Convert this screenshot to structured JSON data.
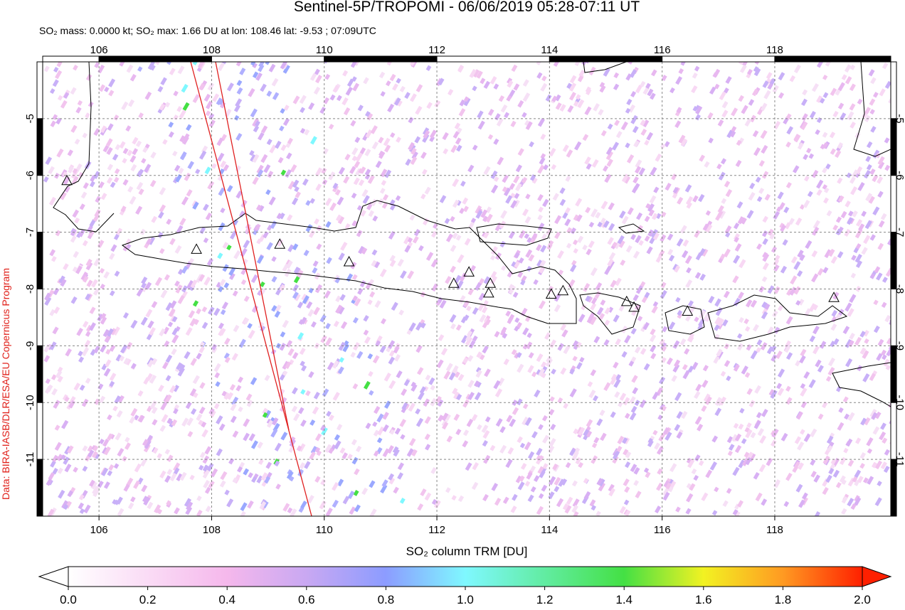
{
  "title": "Sentinel-5P/TROPOMI - 06/06/2019 05:28-07:11 UT",
  "subtitle": "SO₂ mass: 0.0000 kt; SO₂ max: 1.66 DU at lon: 108.46 lat: -9.53 ; 07:09UTC",
  "credit": "Data: BIRA-IASB/DLR/ESA/EU Copernicus Program",
  "map": {
    "xlim": [
      105,
      120.06
    ],
    "ylim": [
      -12,
      -4
    ],
    "xticks": [
      106,
      108,
      110,
      112,
      114,
      116,
      118
    ],
    "yticks": [
      -5,
      -6,
      -7,
      -8,
      -9,
      -10,
      -11
    ],
    "volcanoes": [
      [
        105.43,
        -6.1
      ],
      [
        107.73,
        -7.31
      ],
      [
        109.21,
        -7.22
      ],
      [
        110.44,
        -7.53
      ],
      [
        112.3,
        -7.91
      ],
      [
        112.57,
        -7.71
      ],
      [
        112.95,
        -7.91
      ],
      [
        112.92,
        -8.08
      ],
      [
        114.03,
        -8.1
      ],
      [
        114.24,
        -8.04
      ],
      [
        115.37,
        -8.23
      ],
      [
        115.5,
        -8.33
      ],
      [
        116.45,
        -8.4
      ],
      [
        119.05,
        -8.16
      ]
    ]
  },
  "colorbar": {
    "label": "SO₂ column TRM [DU]",
    "lim": [
      0,
      2
    ],
    "ticks": [
      {
        "value": 0,
        "label": "0.0"
      },
      {
        "value": 0.2,
        "label": "0.2"
      },
      {
        "value": 0.4,
        "label": "0.4"
      },
      {
        "value": 0.6,
        "label": "0.6"
      },
      {
        "value": 0.8,
        "label": "0.8"
      },
      {
        "value": 1,
        "label": "1.0"
      },
      {
        "value": 1.2,
        "label": "1.2"
      },
      {
        "value": 1.4,
        "label": "1.4"
      },
      {
        "value": 1.6,
        "label": "1.6"
      },
      {
        "value": 1.8,
        "label": "1.8"
      },
      {
        "value": 2,
        "label": "2.0"
      }
    ]
  }
}
